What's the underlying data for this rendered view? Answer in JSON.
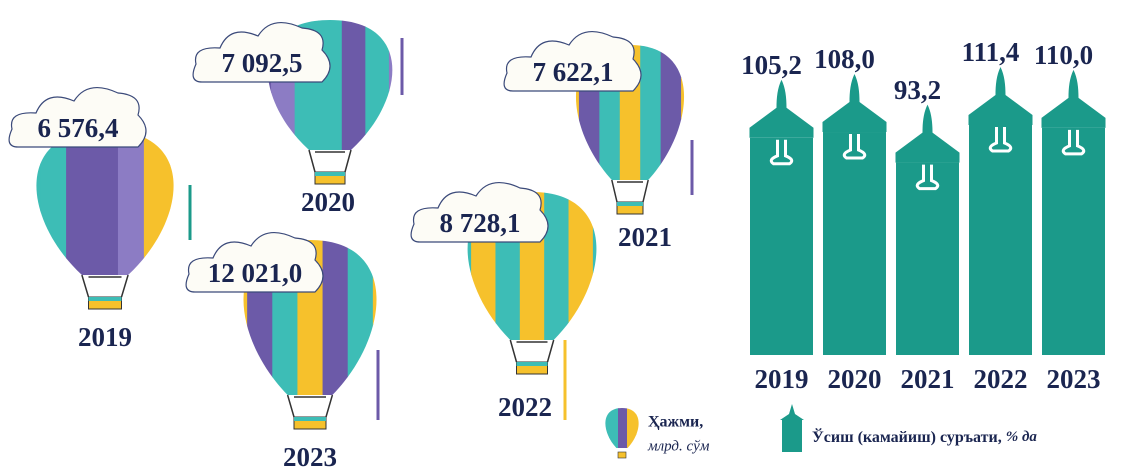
{
  "chart_data": [
    {
      "type": "balloon",
      "categories": [
        "2019",
        "2020",
        "2021",
        "2022",
        "2023"
      ],
      "values": [
        6576.4,
        7092.5,
        7622.1,
        8728.1,
        12021.0
      ],
      "value_labels": [
        "6 576,4",
        "7 092,5",
        "7 622,1",
        "8 728,1",
        "12 021,0"
      ],
      "legend": "Ҳажми,",
      "unit": "млрд. сўм"
    },
    {
      "type": "bar",
      "categories": [
        "2019",
        "2020",
        "2021",
        "2022",
        "2023"
      ],
      "values": [
        105.2,
        108.0,
        93.2,
        111.4,
        110.0
      ],
      "value_labels": [
        "105,2",
        "108,0",
        "93,2",
        "111,4",
        "110,0"
      ],
      "color": "#1b9a8a",
      "legend": "Ўсиш (камайиш) суръати,",
      "unit": "% да"
    }
  ]
}
